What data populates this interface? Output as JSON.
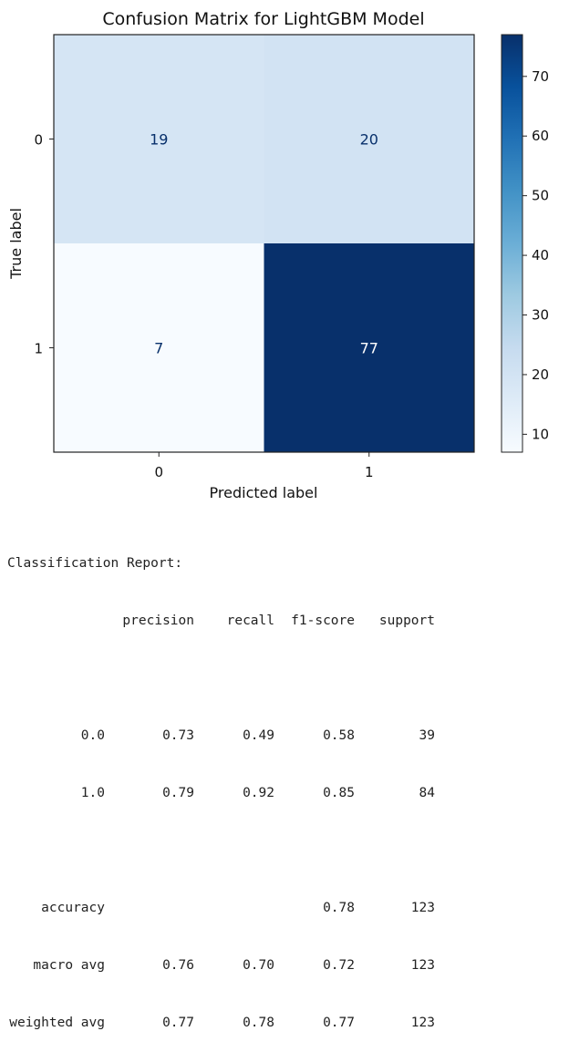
{
  "chart_data": {
    "type": "heatmap",
    "title": "Confusion Matrix for LightGBM Model",
    "xlabel": "Predicted label",
    "ylabel": "True label",
    "x_categories": [
      "0",
      "1"
    ],
    "y_categories": [
      "0",
      "1"
    ],
    "matrix": [
      [
        19,
        20
      ],
      [
        7,
        77
      ]
    ],
    "colormap": "Blues",
    "color_range": [
      7,
      77
    ],
    "colorbar_ticks": [
      10,
      20,
      30,
      40,
      50,
      60,
      70
    ],
    "grid": false
  },
  "report": {
    "title": "Classification Report:",
    "headers": [
      "precision",
      "recall",
      "f1-score",
      "support"
    ],
    "class_rows": [
      {
        "label": "0.0",
        "precision": "0.73",
        "recall": "0.49",
        "f1": "0.58",
        "support": "39"
      },
      {
        "label": "1.0",
        "precision": "0.79",
        "recall": "0.92",
        "f1": "0.85",
        "support": "84"
      }
    ],
    "summary_rows": [
      {
        "label": "accuracy",
        "precision": "",
        "recall": "",
        "f1": "0.78",
        "support": "123"
      },
      {
        "label": "macro avg",
        "precision": "0.76",
        "recall": "0.70",
        "f1": "0.72",
        "support": "123"
      },
      {
        "label": "weighted avg",
        "precision": "0.77",
        "recall": "0.78",
        "f1": "0.77",
        "support": "123"
      }
    ]
  }
}
